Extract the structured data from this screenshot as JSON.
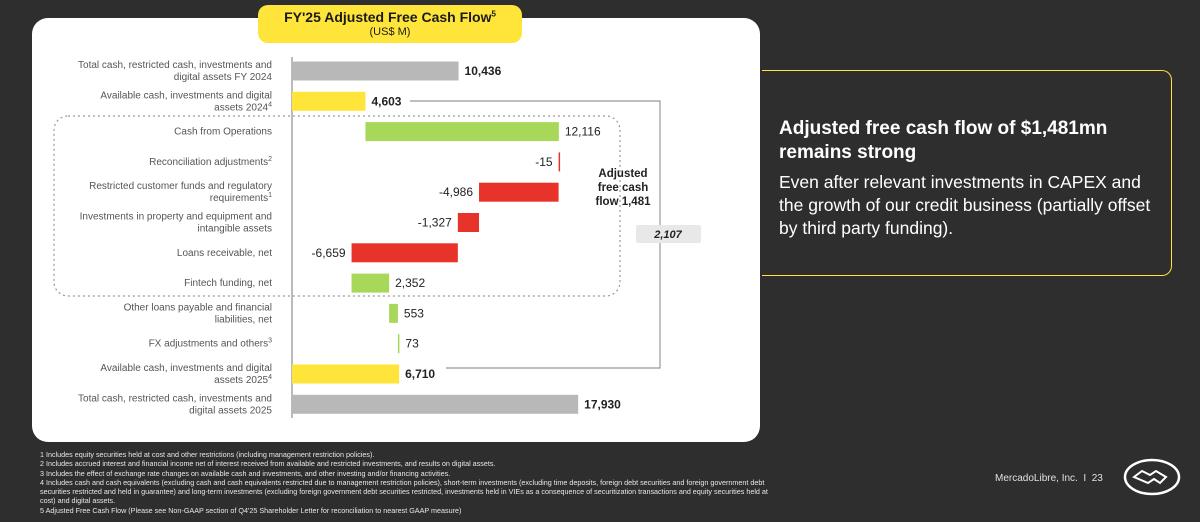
{
  "header": {
    "title": "FY'25 Adjusted Free Cash Flow",
    "title_sup": "5",
    "subtitle": "(US$ M)"
  },
  "chart_data": {
    "type": "waterfall",
    "title": "FY'25 Adjusted Free Cash Flow",
    "unit": "US$ M",
    "items": [
      {
        "label": "Total cash, restricted cash, investments and digital assets FY 2024",
        "value": 10436,
        "display": "10,436",
        "kind": "total"
      },
      {
        "label": "Available cash, investments and digital assets 2024",
        "sup": "4",
        "value": 4603,
        "display": "4,603",
        "kind": "subtotal"
      },
      {
        "label": "Cash from Operations",
        "value": 12116,
        "display": "12,116",
        "kind": "increase"
      },
      {
        "label": "Reconciliation adjustments",
        "sup": "2",
        "value": -15,
        "display": "-15",
        "kind": "decrease"
      },
      {
        "label": "Restricted customer funds and regulatory requirements",
        "sup": "1",
        "value": -4986,
        "display": "-4,986",
        "kind": "decrease"
      },
      {
        "label": "Investments in property and equipment and intangible assets",
        "value": -1327,
        "display": "-1,327",
        "kind": "decrease"
      },
      {
        "label": "Loans receivable, net",
        "value": -6659,
        "display": "-6,659",
        "kind": "decrease"
      },
      {
        "label": "Fintech funding, net",
        "value": 2352,
        "display": "2,352",
        "kind": "increase"
      },
      {
        "label": "Other loans payable and financial liabilities, net",
        "value": 553,
        "display": "553",
        "kind": "increase"
      },
      {
        "label": "FX adjustments and others",
        "sup": "3",
        "value": 73,
        "display": "73",
        "kind": "increase"
      },
      {
        "label": "Available cash, investments and digital assets 2025",
        "sup": "4",
        "value": 6710,
        "display": "6,710",
        "kind": "subtotal"
      },
      {
        "label": "Total cash, restricted cash, investments and digital assets 2025",
        "value": 17930,
        "display": "17,930",
        "kind": "total"
      }
    ],
    "annotations": {
      "adjusted_fcf_label": [
        "Adjusted",
        "free cash",
        "flow 1,481"
      ],
      "bracket_value": "2,107"
    },
    "colors": {
      "total": "#b8b8b8",
      "subtotal": "#ffe53a",
      "increase": "#a8d85a",
      "decrease": "#e8332a"
    }
  },
  "callout": {
    "headline": "Adjusted free cash flow of $1,481mn remains strong",
    "body": "Even after relevant investments in CAPEX and the growth of our credit business (partially offset by third party funding)."
  },
  "footnotes": [
    "1 Includes equity securities held at cost and other restrictions (including management restriction policies).",
    "2 Includes accrued interest and financial income net of interest received from available and restricted investments, and results on digital assets.",
    "3 Includes the effect of exchange rate changes on available cash and investments, and other investing and/or financing activities.",
    "4 Includes cash and cash equivalents (excluding cash and cash equivalents restricted due to management restriction policies), short-term investments (excluding time deposits, foreign debt securities and foreign government debt securities restricted and held in guarantee) and long-term investments (excluding foreign government debt securities restricted, investments held in VIEs as a consequence of securitization transactions and equity securities held at cost) and digital assets.",
    "5 Adjusted Free Cash Flow (Please see Non-GAAP section of Q4'25 Shareholder Letter for reconciliation to nearest GAAP measure)"
  ],
  "footer": {
    "company": "MercadoLibre, Inc.",
    "separator": "I",
    "page_number": "23",
    "logo_icon": "handshake-logo-icon"
  }
}
